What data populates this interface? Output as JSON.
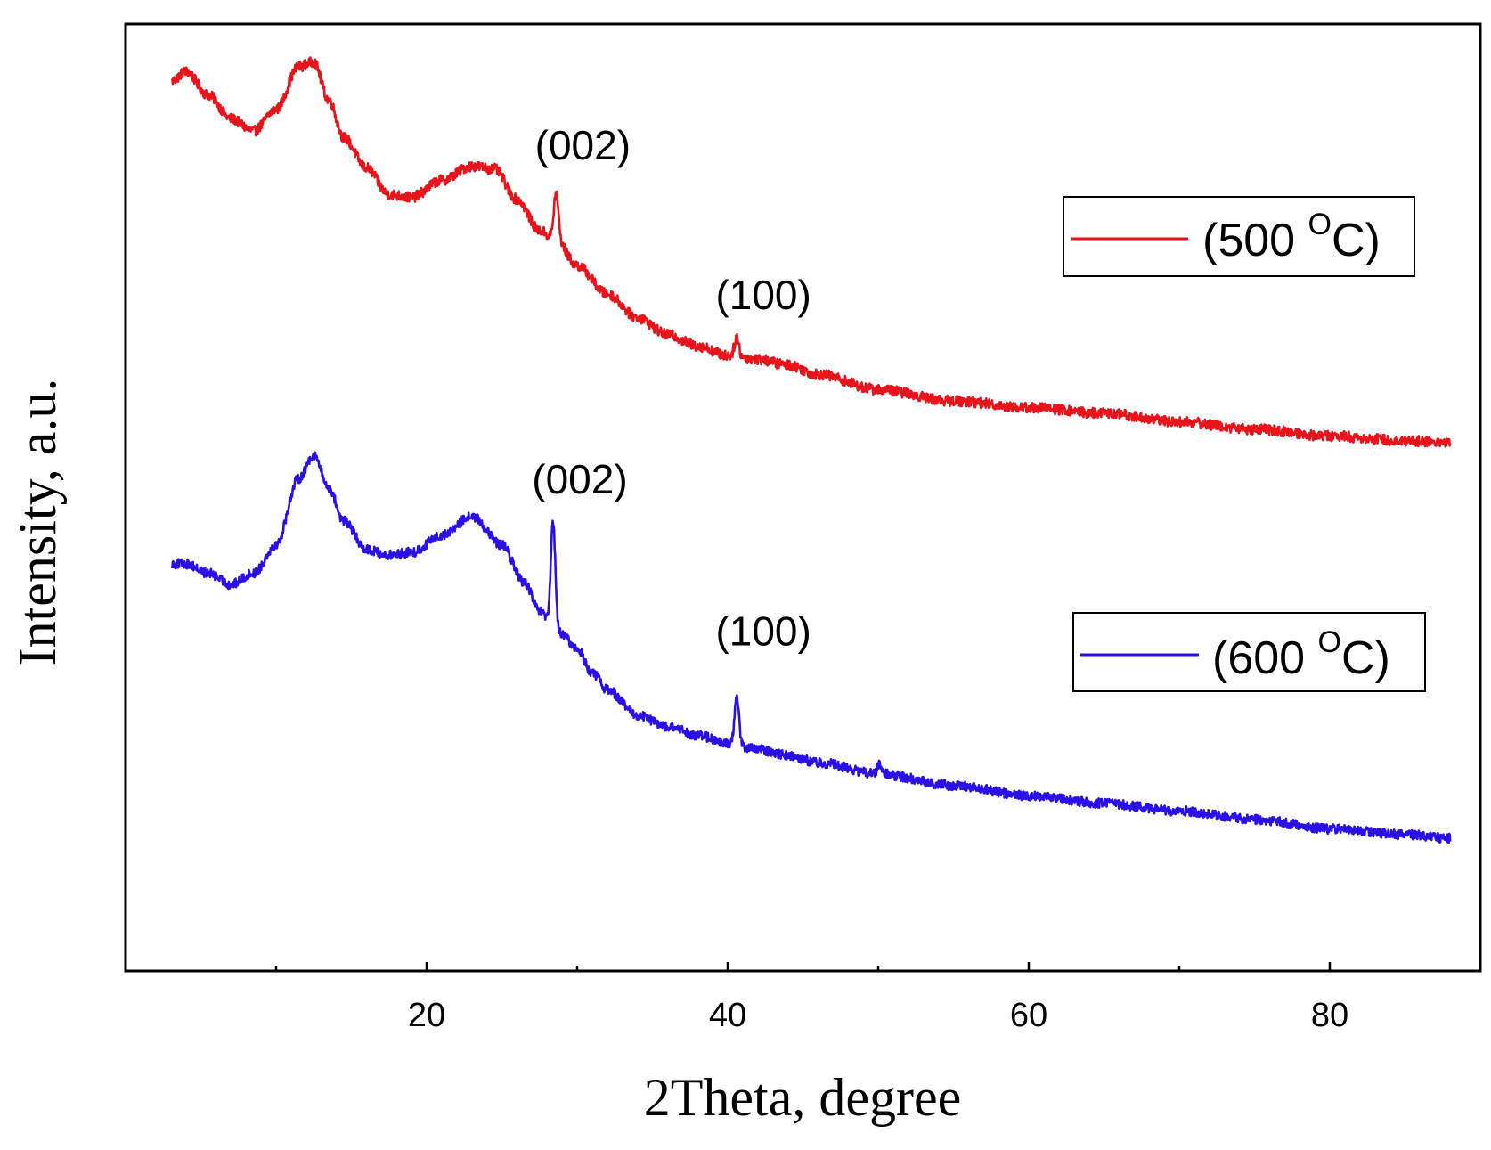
{
  "chart_data": {
    "type": "line",
    "title": "",
    "xlabel": "2Theta, degree",
    "ylabel": "Intensity, a.u.",
    "xlim": [
      0,
      90
    ],
    "ylim": [
      0,
      100
    ],
    "xticks": [
      20,
      40,
      60,
      80
    ],
    "xticks_minor": [
      10,
      30,
      50,
      70,
      90
    ],
    "yticks": [],
    "grid": false,
    "legend_placement": "right",
    "series": [
      {
        "name": "(500 OC)",
        "legend_main": "(500 ",
        "legend_sup": "O",
        "legend_end": "C)",
        "color": "#e8141c",
        "keypoints": [
          [
            3.1,
            94.0
          ],
          [
            4.0,
            95.0
          ],
          [
            5.5,
            92.5
          ],
          [
            7.0,
            90.0
          ],
          [
            8.5,
            88.7
          ],
          [
            10.0,
            91.0
          ],
          [
            11.5,
            95.5
          ],
          [
            12.5,
            96.0
          ],
          [
            13.5,
            92.0
          ],
          [
            14.5,
            88.0
          ],
          [
            16.0,
            84.8
          ],
          [
            17.5,
            82.0
          ],
          [
            19.0,
            81.7
          ],
          [
            21.0,
            83.5
          ],
          [
            23.0,
            85.0
          ],
          [
            24.5,
            84.7
          ],
          [
            26.0,
            81.5
          ],
          [
            27.5,
            78.2
          ],
          [
            28.6,
            77.2
          ],
          [
            30.0,
            74.5
          ],
          [
            32.0,
            71.5
          ],
          [
            34.0,
            69.0
          ],
          [
            36.0,
            67.2
          ],
          [
            38.0,
            66.0
          ],
          [
            40.0,
            65.0
          ],
          [
            42.0,
            64.6
          ],
          [
            44.0,
            64.0
          ],
          [
            46.0,
            63.0
          ],
          [
            50.0,
            61.4
          ],
          [
            55.0,
            60.2
          ],
          [
            60.0,
            59.5
          ],
          [
            65.0,
            58.9
          ],
          [
            70.0,
            58.0
          ],
          [
            75.0,
            57.2
          ],
          [
            80.0,
            56.5
          ],
          [
            85.0,
            56.0
          ],
          [
            88.0,
            55.8
          ]
        ],
        "peaks": [
          {
            "x": 28.6,
            "height": 5.0,
            "width": 0.15,
            "label": "(002)"
          },
          {
            "x": 40.6,
            "height": 2.0,
            "width": 0.15,
            "label": "(100)"
          }
        ],
        "noise": 0.55
      },
      {
        "name": "(600 OC)",
        "legend_main": "(600 ",
        "legend_sup": "O",
        "legend_end": "C)",
        "color": "#2a10e6",
        "keypoints": [
          [
            3.1,
            43.0
          ],
          [
            4.0,
            43.0
          ],
          [
            5.5,
            42.0
          ],
          [
            7.0,
            40.8
          ],
          [
            8.5,
            42.0
          ],
          [
            10.0,
            45.0
          ],
          [
            11.5,
            52.0
          ],
          [
            12.5,
            54.5
          ],
          [
            13.5,
            51.0
          ],
          [
            14.5,
            47.5
          ],
          [
            16.0,
            44.5
          ],
          [
            17.5,
            43.9
          ],
          [
            19.0,
            44.2
          ],
          [
            21.0,
            46.0
          ],
          [
            23.0,
            48.0
          ],
          [
            25.0,
            45.0
          ],
          [
            26.5,
            41.0
          ],
          [
            27.5,
            38.0
          ],
          [
            28.3,
            36.5
          ],
          [
            29.0,
            35.5
          ],
          [
            30.0,
            34.0
          ],
          [
            31.0,
            31.5
          ],
          [
            32.0,
            29.7
          ],
          [
            34.0,
            27.0
          ],
          [
            36.0,
            25.8
          ],
          [
            38.0,
            24.9
          ],
          [
            40.0,
            24.0
          ],
          [
            42.0,
            23.4
          ],
          [
            44.0,
            22.8
          ],
          [
            46.0,
            22.0
          ],
          [
            50.0,
            20.8
          ],
          [
            55.0,
            19.6
          ],
          [
            60.0,
            18.5
          ],
          [
            65.0,
            17.7
          ],
          [
            70.0,
            16.9
          ],
          [
            75.0,
            16.0
          ],
          [
            80.0,
            15.0
          ],
          [
            85.0,
            14.4
          ],
          [
            88.0,
            14.0
          ]
        ],
        "peaks": [
          {
            "x": 28.4,
            "height": 11.0,
            "width": 0.15,
            "label": "(002)"
          },
          {
            "x": 40.6,
            "height": 5.0,
            "width": 0.15,
            "label": "(100)"
          },
          {
            "x": 50.1,
            "height": 1.0,
            "width": 0.15
          }
        ],
        "noise": 0.5
      }
    ]
  }
}
